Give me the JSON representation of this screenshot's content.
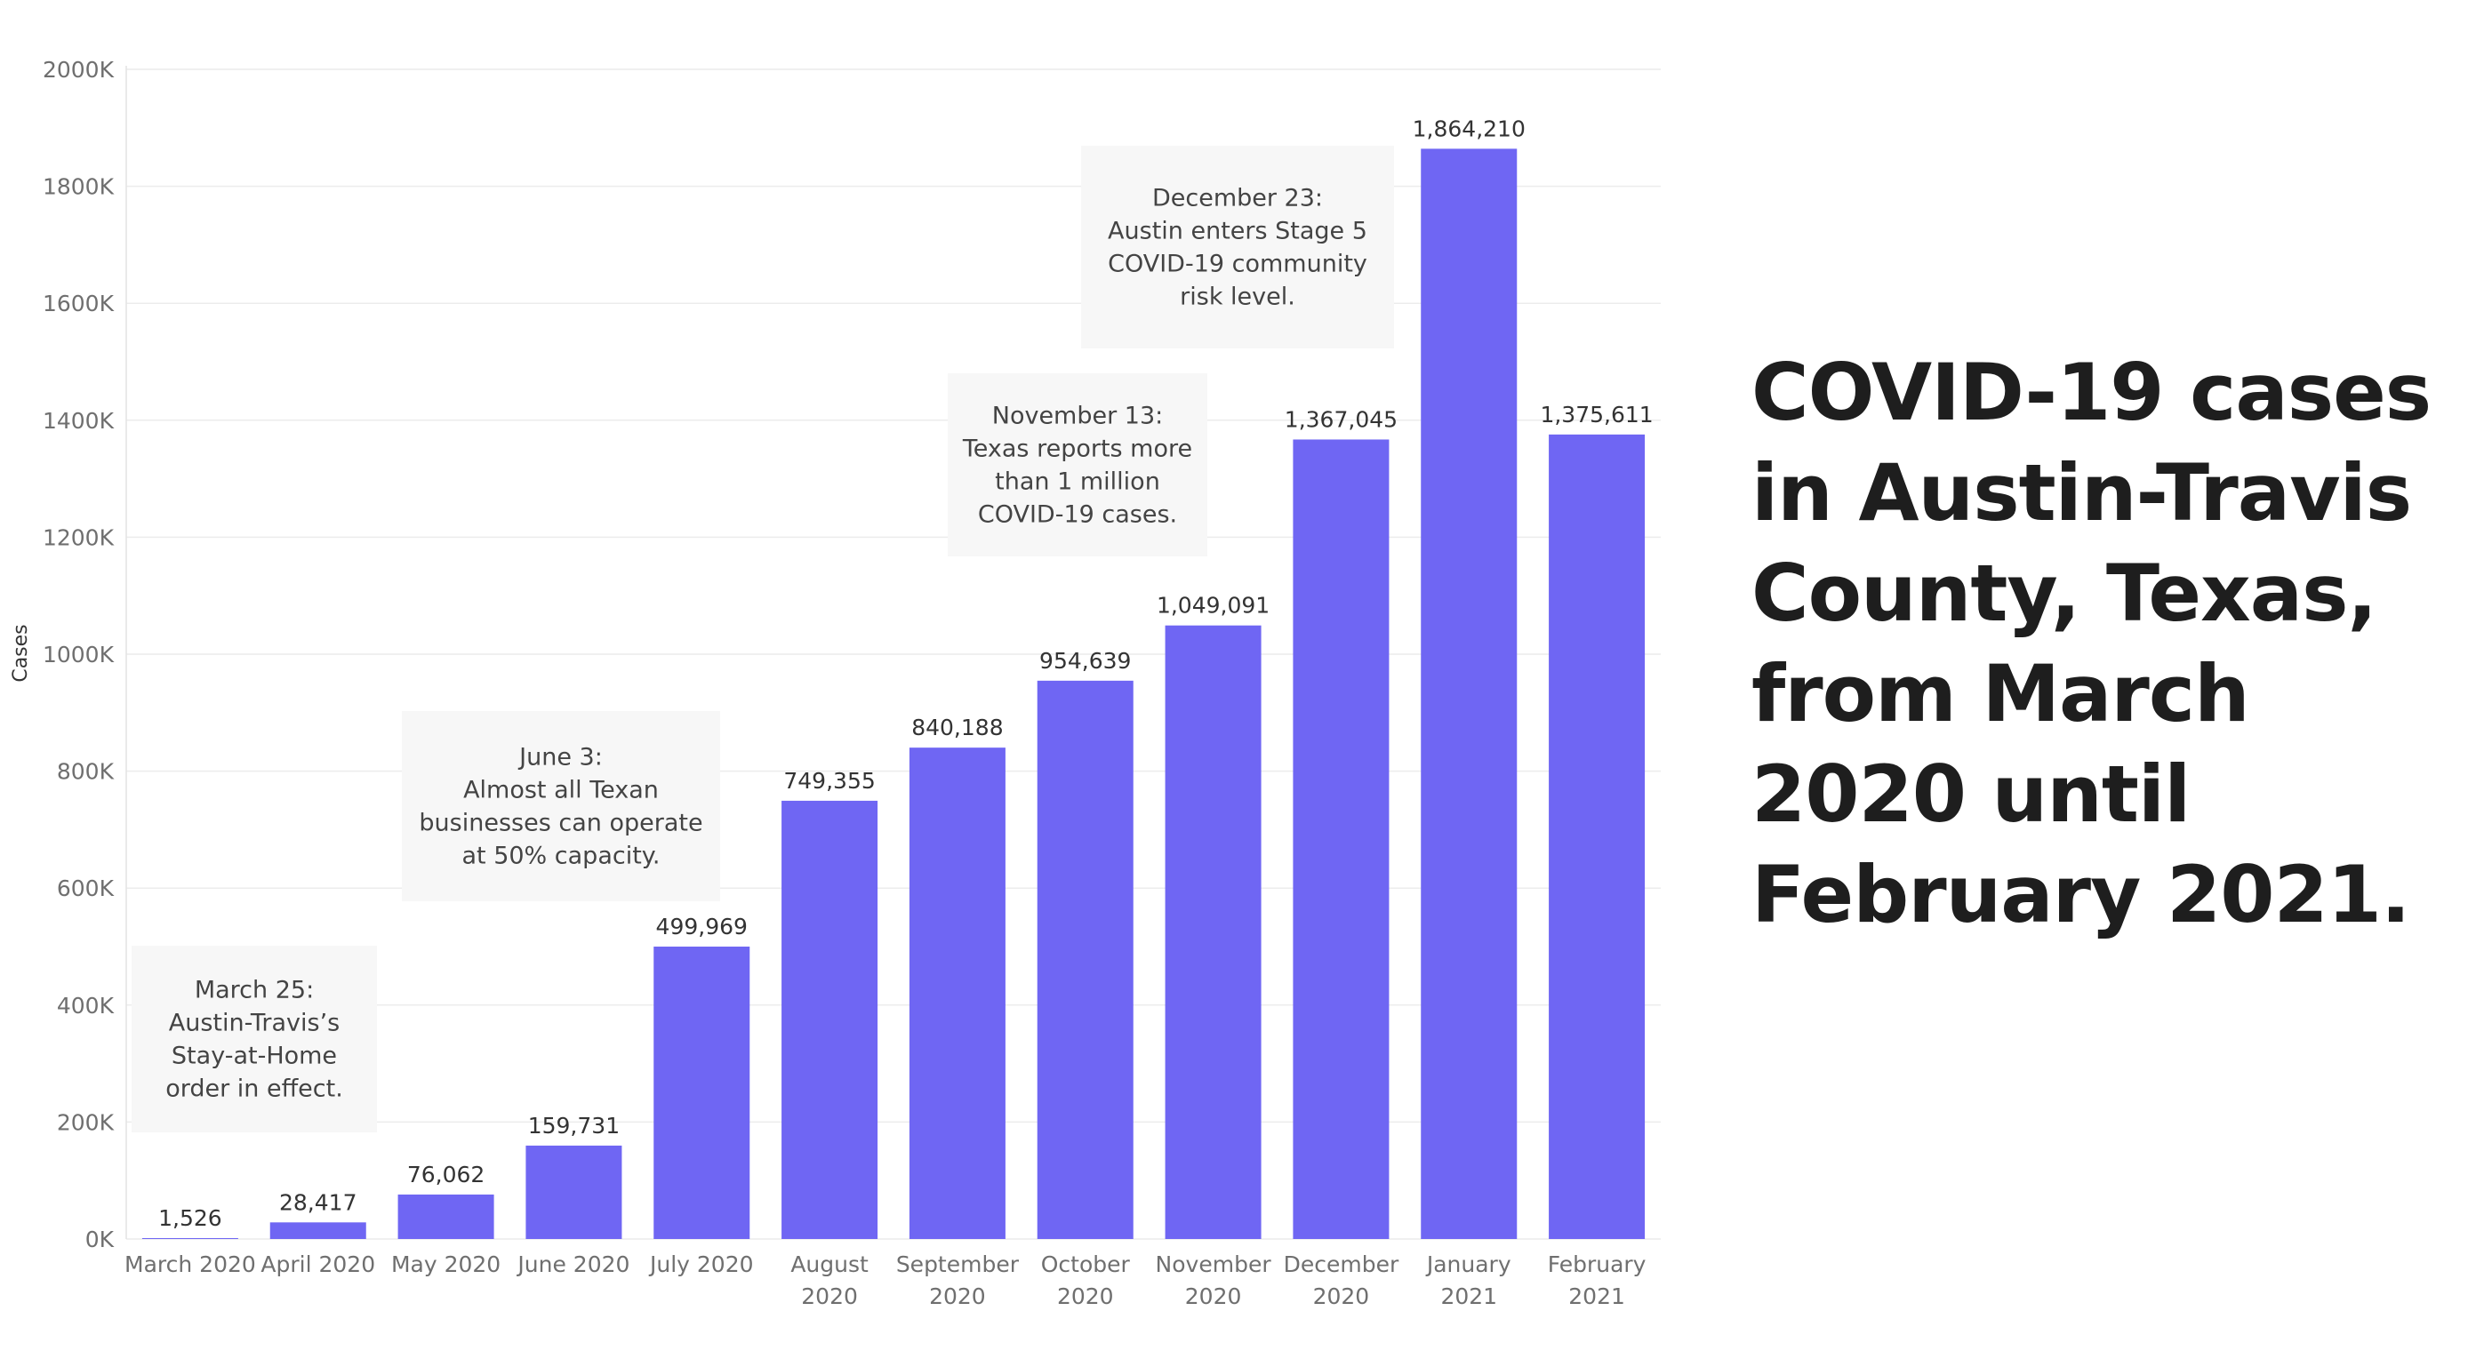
{
  "chart_data": {
    "type": "bar",
    "title": "COVID-19 cases in Austin-Travis County, Texas, from March 2020 until February 2021.",
    "ylabel": "Cases",
    "xlabel": "",
    "ylim": [
      0,
      2000000
    ],
    "yticks": [
      {
        "value": 0,
        "label": "0K"
      },
      {
        "value": 200000,
        "label": "200K"
      },
      {
        "value": 400000,
        "label": "400K"
      },
      {
        "value": 600000,
        "label": "600K"
      },
      {
        "value": 800000,
        "label": "800K"
      },
      {
        "value": 1000000,
        "label": "1000K"
      },
      {
        "value": 1200000,
        "label": "1200K"
      },
      {
        "value": 1400000,
        "label": "1400K"
      },
      {
        "value": 1600000,
        "label": "1600K"
      },
      {
        "value": 1800000,
        "label": "1800K"
      },
      {
        "value": 2000000,
        "label": "2000K"
      }
    ],
    "categories": [
      [
        "March 2020"
      ],
      [
        "April 2020"
      ],
      [
        "May 2020"
      ],
      [
        "June 2020"
      ],
      [
        "July 2020"
      ],
      [
        "August",
        "2020"
      ],
      [
        "September",
        "2020"
      ],
      [
        "October",
        "2020"
      ],
      [
        "November",
        "2020"
      ],
      [
        "December",
        "2020"
      ],
      [
        "January",
        "2021"
      ],
      [
        "February",
        "2021"
      ]
    ],
    "values": [
      1526,
      28417,
      76062,
      159731,
      499969,
      749355,
      840188,
      954639,
      1049091,
      1367045,
      1864210,
      1375611
    ],
    "value_labels": [
      "1,526",
      "28,417",
      "76,062",
      "159,731",
      "499,969",
      "749,355",
      "840,188",
      "954,639",
      "1,049,091",
      "1,367,045",
      "1,864,210",
      "1,375,611"
    ],
    "bar_color": "#6f66f3",
    "grid": true,
    "annotations": [
      {
        "lines": [
          "March 25:",
          "Austin-Travis’s",
          "Stay-at-Home",
          "order in effect."
        ]
      },
      {
        "lines": [
          "June 3:",
          "Almost all Texan",
          "businesses can operate",
          "at 50% capacity."
        ]
      },
      {
        "lines": [
          "November 13:",
          "Texas reports more",
          "than 1 million",
          "COVID-19 cases."
        ]
      },
      {
        "lines": [
          "December 23:",
          "Austin enters Stage 5",
          "COVID-19 community",
          "risk level."
        ]
      }
    ]
  }
}
